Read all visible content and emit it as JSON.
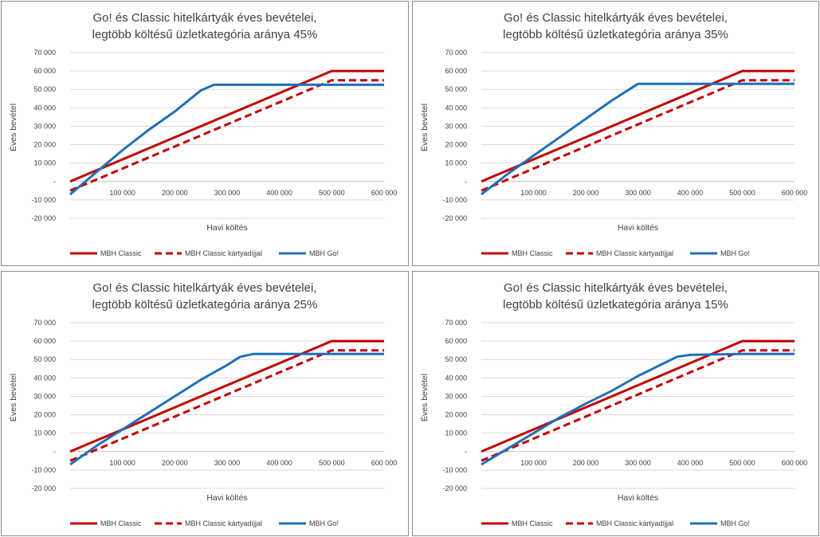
{
  "colors": {
    "classic": "#c00000",
    "classic_fee": "#c00000",
    "go": "#1f6fb8",
    "grid": "#d9d9d9",
    "axis": "#bfbfbf"
  },
  "chart_data": [
    {
      "type": "line",
      "title_line1": "Go! és Classic hitelkártyák éves bevételei,",
      "title_line2": "legtöbb költésű üzletkategória aránya 45%",
      "xlabel": "Havi költés",
      "ylabel": "Éves bevétel",
      "xlim": [
        0,
        600000
      ],
      "ylim": [
        -20000,
        70000
      ],
      "x_ticks": [
        "100 000",
        "200 000",
        "300 000",
        "400 000",
        "500 000",
        "600 000"
      ],
      "y_ticks": [
        "70 000",
        "60 000",
        "50 000",
        "40 000",
        "30 000",
        "20 000",
        "10 000",
        "-",
        "-10 000",
        "-20 000"
      ],
      "grid": true,
      "legend_position": "bottom",
      "series": [
        {
          "name": "MBH Classic",
          "style": "solid",
          "x": [
            0,
            500000,
            600000
          ],
          "y": [
            0,
            60000,
            60000
          ]
        },
        {
          "name": "MBH Classic kártyadíjjal",
          "style": "dashed",
          "x": [
            0,
            500000,
            600000
          ],
          "y": [
            -5000,
            55000,
            55000
          ]
        },
        {
          "name": "MBH Go!",
          "style": "solid",
          "x": [
            0,
            50000,
            100000,
            150000,
            175000,
            200000,
            250000,
            275000,
            300000,
            500000,
            600000
          ],
          "y": [
            -7000,
            5000,
            17000,
            28000,
            33000,
            38000,
            49500,
            52500,
            52500,
            52500,
            52500
          ]
        }
      ]
    },
    {
      "type": "line",
      "title_line1": "Go! és Classic hitelkártyák éves bevételei,",
      "title_line2": "legtöbb költésű üzletkategória aránya 35%",
      "xlabel": "Havi költés",
      "ylabel": "Éves bevétel",
      "xlim": [
        0,
        600000
      ],
      "ylim": [
        -20000,
        70000
      ],
      "x_ticks": [
        "100 000",
        "200 000",
        "300 000",
        "400 000",
        "500 000",
        "600 000"
      ],
      "y_ticks": [
        "70 000",
        "60 000",
        "50 000",
        "40 000",
        "30 000",
        "20 000",
        "10 000",
        "-",
        "-10 000",
        "-20 000"
      ],
      "grid": true,
      "legend_position": "bottom",
      "series": [
        {
          "name": "MBH Classic",
          "style": "solid",
          "x": [
            0,
            500000,
            600000
          ],
          "y": [
            0,
            60000,
            60000
          ]
        },
        {
          "name": "MBH Classic kártyadíjjal",
          "style": "dashed",
          "x": [
            0,
            500000,
            600000
          ],
          "y": [
            -5000,
            55000,
            55000
          ]
        },
        {
          "name": "MBH Go!",
          "style": "solid",
          "x": [
            0,
            50000,
            100000,
            150000,
            200000,
            250000,
            300000,
            500000,
            600000
          ],
          "y": [
            -7000,
            4000,
            14000,
            24000,
            34000,
            44000,
            53000,
            53000,
            53000
          ]
        }
      ]
    },
    {
      "type": "line",
      "title_line1": "Go! és Classic hitelkártyák éves bevételei,",
      "title_line2": "legtöbb költésű üzletkategória aránya 25%",
      "xlabel": "Havi költés",
      "ylabel": "Éves bevétel",
      "xlim": [
        0,
        600000
      ],
      "ylim": [
        -20000,
        70000
      ],
      "x_ticks": [
        "100 000",
        "200 000",
        "300 000",
        "400 000",
        "500 000",
        "600 000"
      ],
      "y_ticks": [
        "70 000",
        "60 000",
        "50 000",
        "40 000",
        "30 000",
        "20 000",
        "10 000",
        "-",
        "-10 000",
        "-20 000"
      ],
      "grid": true,
      "legend_position": "bottom",
      "series": [
        {
          "name": "MBH Classic",
          "style": "solid",
          "x": [
            0,
            500000,
            600000
          ],
          "y": [
            0,
            60000,
            60000
          ]
        },
        {
          "name": "MBH Classic kártyadíjjal",
          "style": "dashed",
          "x": [
            0,
            500000,
            600000
          ],
          "y": [
            -5000,
            55000,
            55000
          ]
        },
        {
          "name": "MBH Go!",
          "style": "solid",
          "x": [
            0,
            50000,
            100000,
            150000,
            200000,
            250000,
            300000,
            325000,
            350000,
            500000,
            600000
          ],
          "y": [
            -7000,
            3000,
            12000,
            21000,
            30000,
            39000,
            47000,
            51500,
            53000,
            53000,
            53000
          ]
        }
      ]
    },
    {
      "type": "line",
      "title_line1": "Go! és Classic hitelkártyák éves bevételei,",
      "title_line2": "legtöbb költésű üzletkategória aránya 15%",
      "xlabel": "Havi költés",
      "ylabel": "Éves bevétel",
      "xlim": [
        0,
        600000
      ],
      "ylim": [
        -20000,
        70000
      ],
      "x_ticks": [
        "100 000",
        "200 000",
        "300 000",
        "400 000",
        "500 000",
        "600 000"
      ],
      "y_ticks": [
        "70 000",
        "60 000",
        "50 000",
        "40 000",
        "30 000",
        "20 000",
        "10 000",
        "-",
        "-10 000",
        "-20 000"
      ],
      "grid": true,
      "legend_position": "bottom",
      "series": [
        {
          "name": "MBH Classic",
          "style": "solid",
          "x": [
            0,
            500000,
            600000
          ],
          "y": [
            0,
            60000,
            60000
          ]
        },
        {
          "name": "MBH Classic kártyadíjjal",
          "style": "dashed",
          "x": [
            0,
            500000,
            600000
          ],
          "y": [
            -5000,
            55000,
            55000
          ]
        },
        {
          "name": "MBH Go!",
          "style": "solid",
          "x": [
            0,
            50000,
            100000,
            150000,
            200000,
            250000,
            300000,
            350000,
            375000,
            400000,
            500000,
            600000
          ],
          "y": [
            -7000,
            1500,
            10000,
            18500,
            26000,
            33000,
            41000,
            48000,
            51500,
            52500,
            53000,
            53000
          ]
        }
      ]
    }
  ]
}
